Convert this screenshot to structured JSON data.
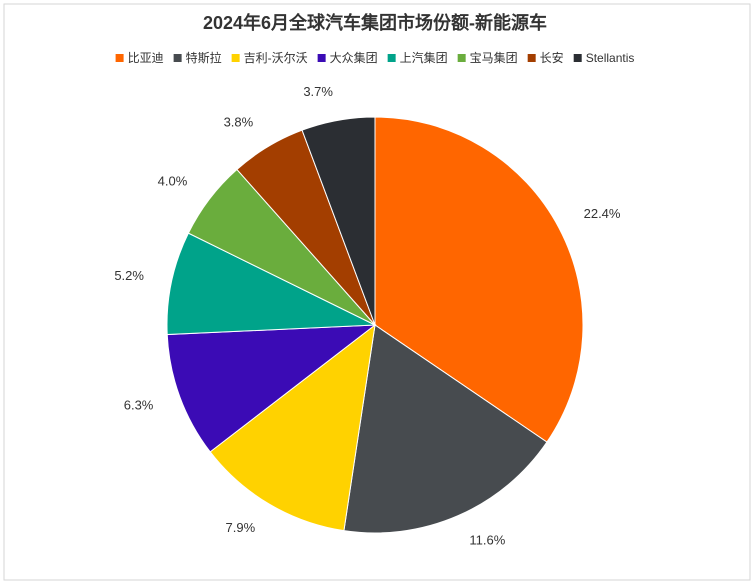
{
  "chart_data": {
    "type": "pie",
    "title": "2024年6月全球汽车集团市场份额-新能源车",
    "categories": [
      "比亚迪",
      "特斯拉",
      "吉利-沃尔沃",
      "大众集团",
      "上汽集团",
      "宝马集团",
      "长安",
      "Stellantis"
    ],
    "values": [
      22.4,
      11.6,
      7.9,
      6.3,
      5.2,
      4.0,
      3.8,
      3.7
    ],
    "value_labels": [
      "22.4%",
      "11.6%",
      "7.9%",
      "6.3%",
      "5.2%",
      "4.0%",
      "3.8%",
      "3.7%"
    ],
    "colors": [
      "#ff6600",
      "#474b4f",
      "#ffd200",
      "#3b0bb5",
      "#00a38a",
      "#6aad3d",
      "#a33e00",
      "#2b2e33"
    ],
    "legend": "top"
  }
}
